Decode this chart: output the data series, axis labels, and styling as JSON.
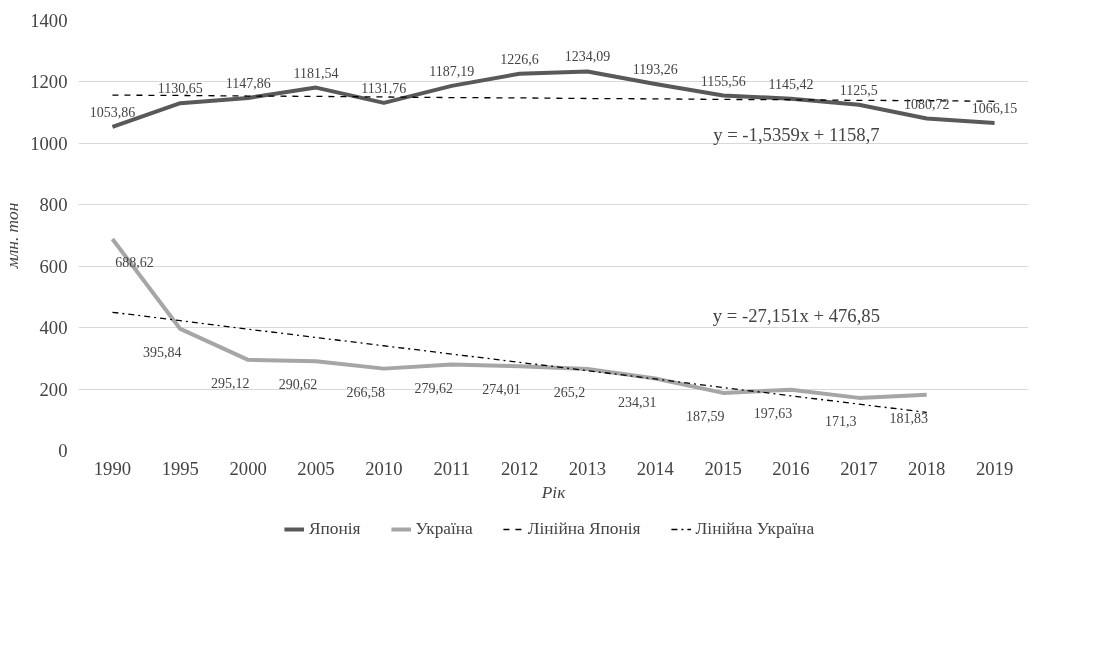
{
  "chart_data": {
    "type": "line",
    "xlabel": "Рік",
    "ylabel": "млн. тон",
    "categories": [
      "1990",
      "1995",
      "2000",
      "2005",
      "2010",
      "2011",
      "2012",
      "2013",
      "2014",
      "2015",
      "2016",
      "2017",
      "2018",
      "2019"
    ],
    "series": [
      {
        "name": "Японія",
        "color": "#595959",
        "values": [
          1053.86,
          1130.65,
          1147.86,
          1181.54,
          1131.76,
          1187.19,
          1226.6,
          1234.09,
          1193.26,
          1155.56,
          1145.42,
          1125.5,
          1080.72,
          1066.15
        ],
        "value_labels": [
          "1053,86",
          "1130,65",
          "1147,86",
          "1181,54",
          "1131,76",
          "1187,19",
          "1226,6",
          "1234,09",
          "1193,26",
          "1155,56",
          "1145,42",
          "1125,5",
          "1080,72",
          "1066,15"
        ]
      },
      {
        "name": "Україна",
        "color": "#a6a6a6",
        "values": [
          688.62,
          395.84,
          295.12,
          290.62,
          266.58,
          279.62,
          274.01,
          265.2,
          234.31,
          187.59,
          197.63,
          171.3,
          181.83,
          null
        ],
        "value_labels": [
          "688,62",
          "395,84",
          "295,12",
          "290,62",
          "266,58",
          "279,62",
          "274,01",
          "265,2",
          "234,31",
          "187,59",
          "197,63",
          "171,3",
          "181,83",
          null
        ]
      },
      {
        "name": "Лінійна Японія",
        "color": "#000000",
        "line_style": "dashed",
        "values": [
          1157,
          1156,
          1154,
          1153,
          1151,
          1149,
          1148,
          1146,
          1145,
          1143,
          1142,
          1140,
          1139,
          1137
        ]
      },
      {
        "name": "Лінійна Україна",
        "color": "#000000",
        "line_style": "dotted",
        "values": [
          450,
          423,
          395,
          368,
          341,
          314,
          287,
          260,
          233,
          205,
          178,
          151,
          124,
          null
        ]
      }
    ],
    "annotations": [
      "y = -1,5359x + 1158,7",
      "y = -27,151x + 476,85"
    ],
    "ylim": [
      0,
      1400
    ],
    "yticks": [
      0,
      200,
      400,
      600,
      800,
      1000,
      1200,
      1400
    ],
    "grid": "y",
    "legend": "bottom"
  }
}
